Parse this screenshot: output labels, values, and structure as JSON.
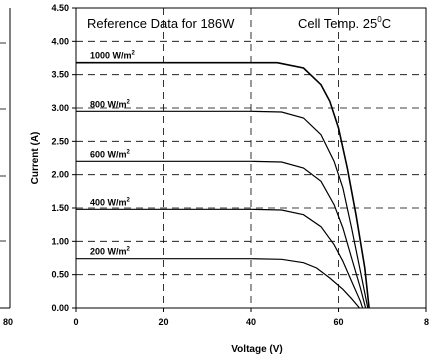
{
  "chart_data": {
    "type": "line",
    "xlabel": "Voltage (V)",
    "ylabel": "Current (A)",
    "xlim": [
      0,
      80
    ],
    "ylim": [
      0,
      4.5
    ],
    "x_ticks": [
      "0",
      "20",
      "40",
      "60",
      "8"
    ],
    "y_ticks": [
      "0.00",
      "0.50",
      "1.00",
      "1.50",
      "2.00",
      "2.50",
      "3.00",
      "3.50",
      "4.00",
      "4.50"
    ],
    "grid": true,
    "annotations": {
      "left": "Reference Data for 186W",
      "right_main": "Cell Temp. 25",
      "right_sup": "0",
      "right_end": "C"
    },
    "left_partial_tick": "80",
    "series": [
      {
        "name": "1000 W/m",
        "sup": "2",
        "points": [
          [
            0,
            3.68
          ],
          [
            40,
            3.68
          ],
          [
            46,
            3.68
          ],
          [
            52,
            3.6
          ],
          [
            56,
            3.35
          ],
          [
            58,
            3.1
          ],
          [
            60,
            2.7
          ],
          [
            62,
            2.1
          ],
          [
            64,
            1.4
          ],
          [
            66,
            0.6
          ],
          [
            67,
            0.0
          ]
        ]
      },
      {
        "name": "800 W/m",
        "sup": "2",
        "points": [
          [
            0,
            2.95
          ],
          [
            40,
            2.95
          ],
          [
            47,
            2.94
          ],
          [
            52,
            2.85
          ],
          [
            56,
            2.6
          ],
          [
            59,
            2.2
          ],
          [
            61,
            1.8
          ],
          [
            63,
            1.2
          ],
          [
            65,
            0.55
          ],
          [
            66.7,
            0.0
          ]
        ]
      },
      {
        "name": "600 W/m",
        "sup": "2",
        "points": [
          [
            0,
            2.2
          ],
          [
            40,
            2.2
          ],
          [
            47,
            2.19
          ],
          [
            52,
            2.1
          ],
          [
            56,
            1.9
          ],
          [
            59,
            1.55
          ],
          [
            61,
            1.2
          ],
          [
            63,
            0.75
          ],
          [
            65,
            0.3
          ],
          [
            66.2,
            0.0
          ]
        ]
      },
      {
        "name": "400 W/m",
        "sup": "2",
        "points": [
          [
            0,
            1.48
          ],
          [
            40,
            1.48
          ],
          [
            47,
            1.47
          ],
          [
            52,
            1.4
          ],
          [
            56,
            1.22
          ],
          [
            59,
            0.95
          ],
          [
            61,
            0.7
          ],
          [
            63,
            0.4
          ],
          [
            65,
            0.1
          ],
          [
            65.5,
            0.0
          ]
        ]
      },
      {
        "name": "200 W/m",
        "sup": "2",
        "points": [
          [
            0,
            0.74
          ],
          [
            40,
            0.74
          ],
          [
            47,
            0.73
          ],
          [
            52,
            0.68
          ],
          [
            55,
            0.6
          ],
          [
            58,
            0.45
          ],
          [
            61,
            0.28
          ],
          [
            63,
            0.14
          ],
          [
            64.8,
            0.0
          ]
        ]
      }
    ]
  }
}
